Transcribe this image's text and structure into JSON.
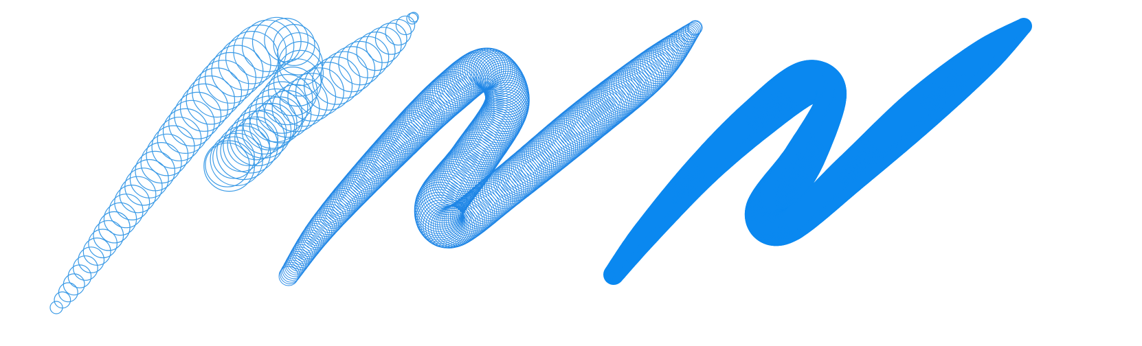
{
  "colors": {
    "background": "#ffffff",
    "sparse_stroke": "#3a9ae6",
    "dense_stroke": "#1f86e6",
    "solid_stroke": "#0a88f0"
  },
  "strokes": [
    {
      "name": "sparse-circle-stroke",
      "stamp_spacing": "sparse",
      "render": "outlined-circles"
    },
    {
      "name": "dense-circle-stroke",
      "stamp_spacing": "dense",
      "render": "outlined-circles"
    },
    {
      "name": "solid-filled-stroke",
      "stamp_spacing": "continuous",
      "render": "solid"
    }
  ]
}
